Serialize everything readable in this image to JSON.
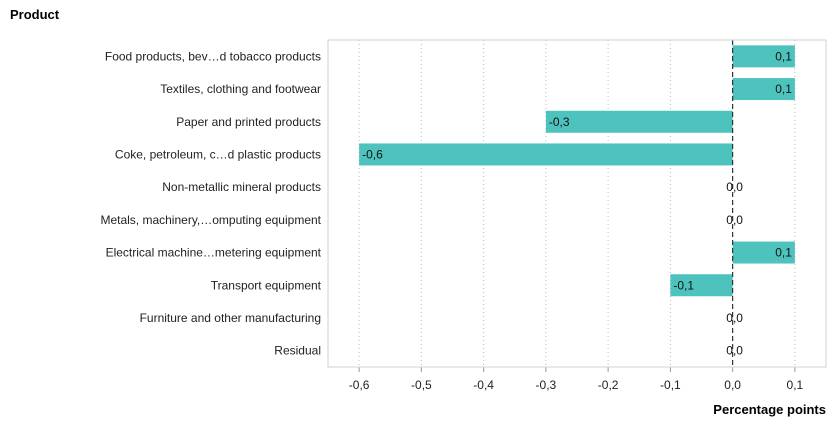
{
  "chart_data": {
    "type": "bar",
    "orientation": "horizontal",
    "title": "Product",
    "xlabel": "Percentage points",
    "categories": [
      "Food products, bev…d tobacco products",
      "Textiles, clothing and footwear",
      "Paper and printed products",
      "Coke, petroleum, c…d plastic products",
      "Non-metallic mineral products",
      "Metals, machinery,…omputing equipment",
      "Electrical machine…metering equipment",
      "Transport equipment",
      "Furniture and other manufacturing",
      "Residual"
    ],
    "values": [
      0.1,
      0.1,
      -0.3,
      -0.6,
      0.0,
      0.0,
      0.1,
      -0.1,
      0.0,
      0.0
    ],
    "value_labels": [
      "0,1",
      "0,1",
      "-0,3",
      "-0,6",
      "0,0",
      "0,0",
      "0,1",
      "-0,1",
      "0,0",
      "0,0"
    ],
    "xlim": [
      -0.65,
      0.15
    ],
    "xticks": [
      -0.6,
      -0.5,
      -0.4,
      -0.3,
      -0.2,
      -0.1,
      0.0,
      0.1
    ],
    "xtick_labels": [
      "-0,6",
      "-0,5",
      "-0,4",
      "-0,3",
      "-0,2",
      "-0,1",
      "0,0",
      "0,1"
    ],
    "grid": "vertical dotted",
    "bar_color": "#4ec3be"
  }
}
